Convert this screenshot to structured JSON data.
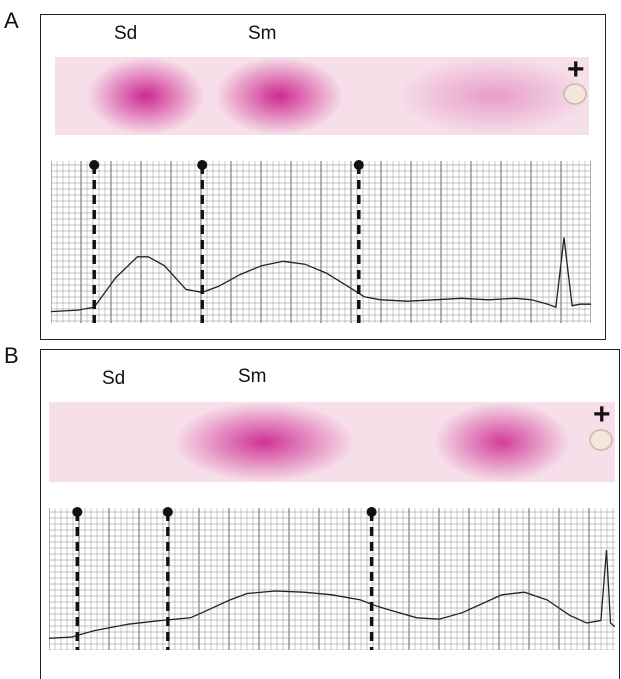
{
  "panels": [
    {
      "letter": "A",
      "labels": [
        "Sd",
        "Sm"
      ],
      "anode_symbol": "+",
      "strip_color": "#f6dfe9",
      "band_color": "#cc1f8c",
      "bands": [
        {
          "center": 0.17,
          "width": 0.11,
          "intensity": 0.95
        },
        {
          "center": 0.42,
          "width": 0.12,
          "intensity": 0.95
        },
        {
          "center": 0.82,
          "width": 0.18,
          "intensity": 0.35
        }
      ],
      "trace": [
        [
          0.0,
          0.05
        ],
        [
          0.05,
          0.06
        ],
        [
          0.08,
          0.08
        ],
        [
          0.12,
          0.28
        ],
        [
          0.16,
          0.42
        ],
        [
          0.18,
          0.42
        ],
        [
          0.21,
          0.36
        ],
        [
          0.25,
          0.2
        ],
        [
          0.28,
          0.18
        ],
        [
          0.31,
          0.22
        ],
        [
          0.35,
          0.3
        ],
        [
          0.39,
          0.36
        ],
        [
          0.43,
          0.39
        ],
        [
          0.47,
          0.37
        ],
        [
          0.51,
          0.31
        ],
        [
          0.55,
          0.22
        ],
        [
          0.58,
          0.15
        ],
        [
          0.61,
          0.13
        ],
        [
          0.66,
          0.12
        ],
        [
          0.71,
          0.13
        ],
        [
          0.76,
          0.14
        ],
        [
          0.81,
          0.13
        ],
        [
          0.86,
          0.14
        ],
        [
          0.89,
          0.13
        ],
        [
          0.92,
          0.1
        ],
        [
          0.935,
          0.08
        ],
        [
          0.95,
          0.55
        ],
        [
          0.965,
          0.09
        ],
        [
          0.98,
          0.1
        ],
        [
          1.0,
          0.1
        ]
      ],
      "markers": [
        0.08,
        0.28,
        0.57
      ]
    },
    {
      "letter": "B",
      "labels": [
        "Sd",
        "Sm"
      ],
      "anode_symbol": "+",
      "strip_color": "#f6dfe9",
      "band_color": "#cc1f8c",
      "bands": [
        {
          "center": 0.38,
          "width": 0.16,
          "intensity": 0.9
        },
        {
          "center": 0.8,
          "width": 0.12,
          "intensity": 0.85
        }
      ],
      "trace": [
        [
          0.0,
          0.06
        ],
        [
          0.04,
          0.07
        ],
        [
          0.08,
          0.12
        ],
        [
          0.14,
          0.17
        ],
        [
          0.2,
          0.2
        ],
        [
          0.25,
          0.22
        ],
        [
          0.28,
          0.28
        ],
        [
          0.32,
          0.36
        ],
        [
          0.35,
          0.41
        ],
        [
          0.4,
          0.43
        ],
        [
          0.45,
          0.42
        ],
        [
          0.5,
          0.4
        ],
        [
          0.55,
          0.36
        ],
        [
          0.58,
          0.31
        ],
        [
          0.61,
          0.27
        ],
        [
          0.65,
          0.22
        ],
        [
          0.69,
          0.21
        ],
        [
          0.73,
          0.26
        ],
        [
          0.77,
          0.34
        ],
        [
          0.8,
          0.4
        ],
        [
          0.84,
          0.42
        ],
        [
          0.88,
          0.36
        ],
        [
          0.92,
          0.24
        ],
        [
          0.95,
          0.18
        ],
        [
          0.975,
          0.2
        ],
        [
          0.985,
          0.75
        ],
        [
          0.992,
          0.18
        ],
        [
          1.0,
          0.15
        ]
      ],
      "markers": [
        0.05,
        0.21,
        0.57
      ]
    }
  ]
}
